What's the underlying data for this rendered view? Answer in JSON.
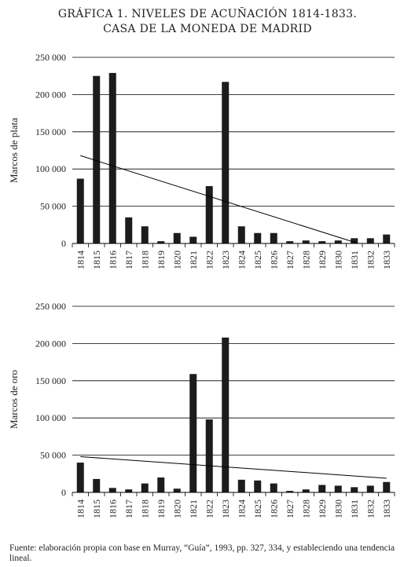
{
  "title_line1": "GRÁFICA 1. NIVELES DE ACUÑACIÓN 1814-1833.",
  "title_line2": "CASA DE LA MONEDA DE MADRID",
  "source_text": "Fuente: elaboración propia con base en Murray, “Guía”, 1993, pp. 327, 334, y estableciendo una tendencia lineal.",
  "chart_data": [
    {
      "type": "bar",
      "ylabel": "Marcos de plata",
      "xlabel": "",
      "categories": [
        "1814",
        "1815",
        "1816",
        "1817",
        "1818",
        "1819",
        "1820",
        "1821",
        "1822",
        "1823",
        "1824",
        "1825",
        "1826",
        "1827",
        "1828",
        "1829",
        "1830",
        "1831",
        "1832",
        "1833"
      ],
      "values": [
        87000,
        225000,
        229000,
        35000,
        23000,
        3000,
        14000,
        9000,
        77000,
        217000,
        23000,
        14000,
        14000,
        3000,
        4000,
        3000,
        4000,
        7000,
        7000,
        12000
      ],
      "ylim": [
        0,
        250000
      ],
      "yticks": [
        "0",
        "50 000",
        "100 000",
        "150 000",
        "200 000",
        "250 000"
      ],
      "trendline": {
        "start": 118000,
        "end": -12000
      },
      "grid": true
    },
    {
      "type": "bar",
      "ylabel": "Marcos de oro",
      "xlabel": "",
      "categories": [
        "1814",
        "1815",
        "1816",
        "1817",
        "1818",
        "1819",
        "1820",
        "1821",
        "1822",
        "1823",
        "1824",
        "1825",
        "1826",
        "1827",
        "1828",
        "1829",
        "1830",
        "1831",
        "1832",
        "1833"
      ],
      "values": [
        40000,
        18000,
        6000,
        4000,
        12000,
        20000,
        5000,
        159000,
        98000,
        208000,
        17000,
        16000,
        12000,
        2000,
        4000,
        10000,
        9000,
        7000,
        9000,
        14000
      ],
      "ylim": [
        0,
        250000
      ],
      "yticks": [
        "0",
        "50 000",
        "100 000",
        "150 000",
        "200 000",
        "250 000"
      ],
      "trendline": {
        "start": 48000,
        "end": 19000
      },
      "grid": true
    }
  ]
}
